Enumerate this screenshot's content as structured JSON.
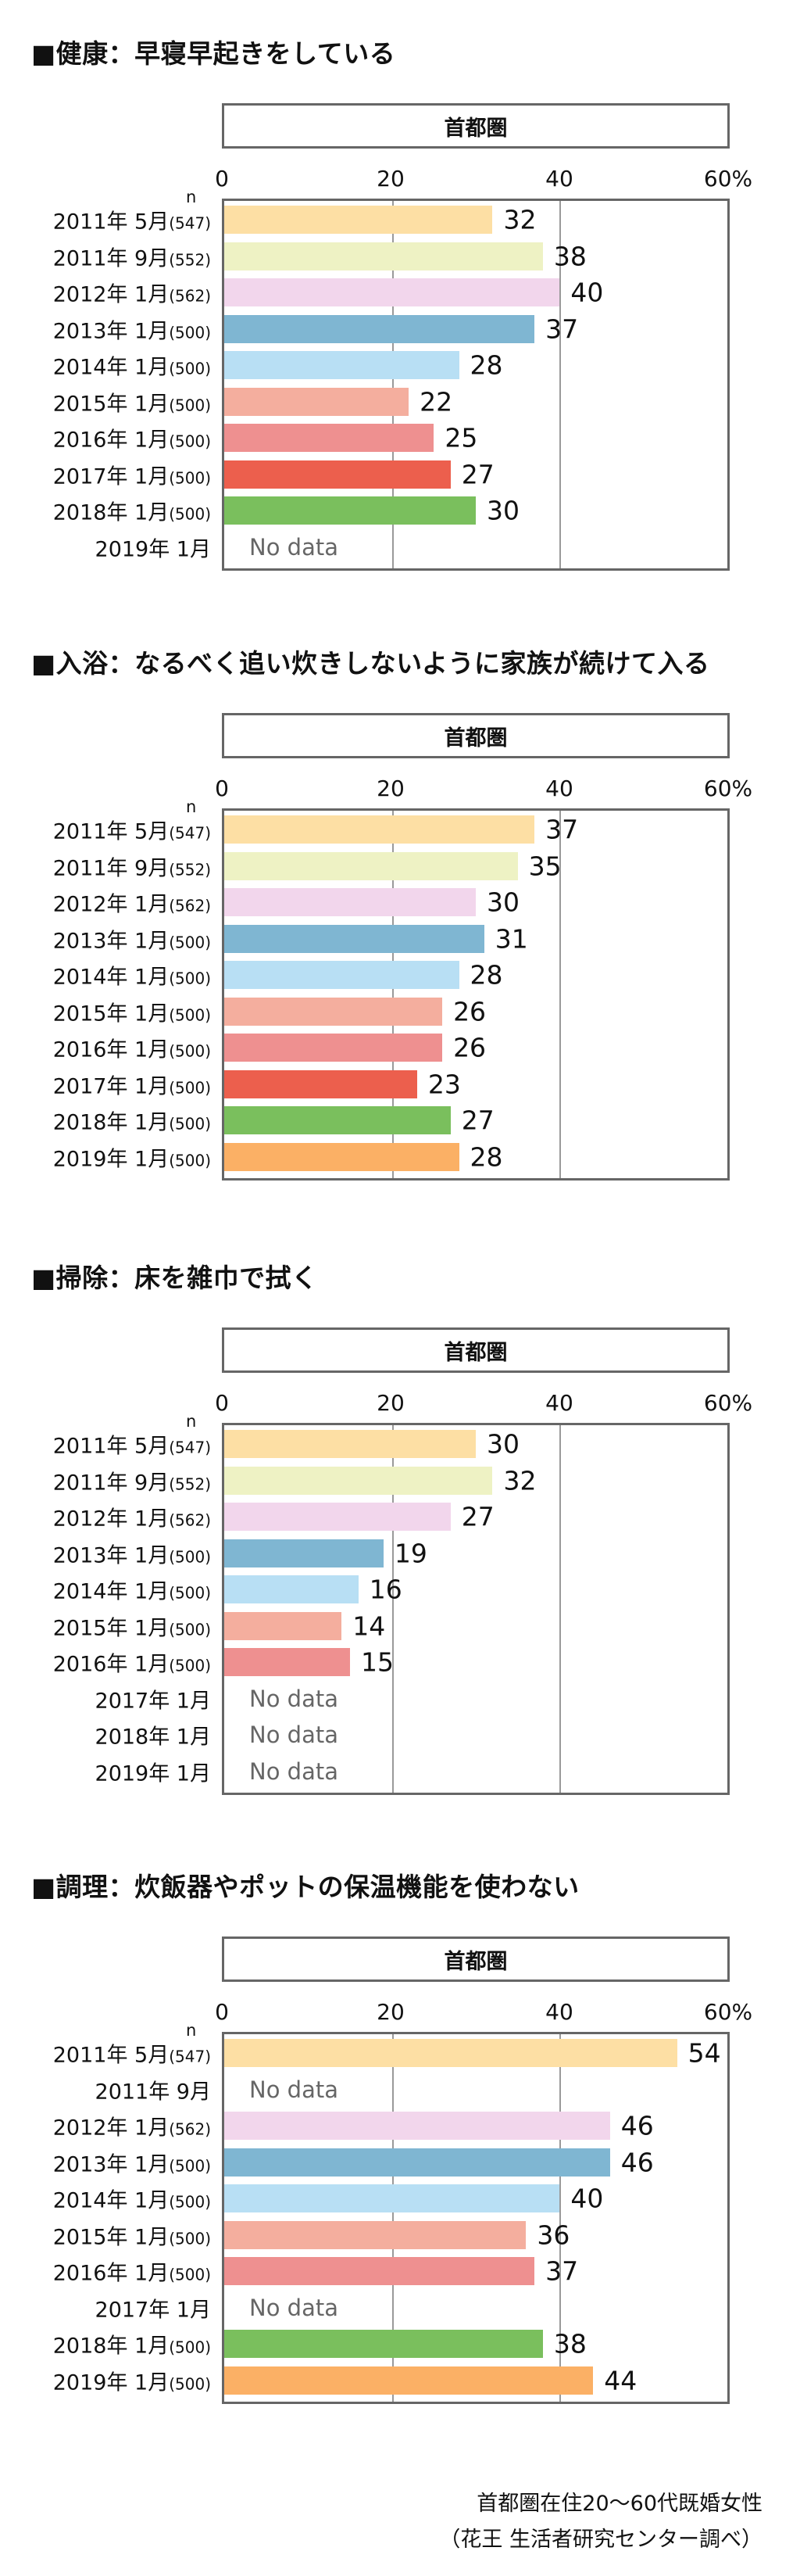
{
  "region_label": "首都圏",
  "n_label": "n",
  "x_ticks": [
    "0",
    "20",
    "40",
    "60%"
  ],
  "no_data_label": "No data",
  "series_colors": [
    "#fddfa4",
    "#eef2c4",
    "#f2d6ec",
    "#7fb6d2",
    "#b8dff4",
    "#f4ae9e",
    "#ee9090",
    "#ec5f4d",
    "#7abf5d",
    "#fbb065"
  ],
  "chart_data": [
    {
      "type": "bar",
      "title": "■健康：早寝早起きをしている",
      "xlim": [
        0,
        60
      ],
      "grid": true,
      "categories": [
        {
          "year": "2011年 5月",
          "n": "(547)"
        },
        {
          "year": "2011年 9月",
          "n": "(552)"
        },
        {
          "year": "2012年 1月",
          "n": "(562)"
        },
        {
          "year": "2013年 1月",
          "n": "(500)"
        },
        {
          "year": "2014年 1月",
          "n": "(500)"
        },
        {
          "year": "2015年 1月",
          "n": "(500)"
        },
        {
          "year": "2016年 1月",
          "n": "(500)"
        },
        {
          "year": "2017年 1月",
          "n": "(500)"
        },
        {
          "year": "2018年 1月",
          "n": "(500)"
        },
        {
          "year": "2019年 1月",
          "n": ""
        }
      ],
      "values": [
        32,
        38,
        40,
        37,
        28,
        22,
        25,
        27,
        30,
        null
      ]
    },
    {
      "type": "bar",
      "title": "■入浴：なるべく追い炊きしないように家族が続けて入る",
      "xlim": [
        0,
        60
      ],
      "grid": true,
      "categories": [
        {
          "year": "2011年 5月",
          "n": "(547)"
        },
        {
          "year": "2011年 9月",
          "n": "(552)"
        },
        {
          "year": "2012年 1月",
          "n": "(562)"
        },
        {
          "year": "2013年 1月",
          "n": "(500)"
        },
        {
          "year": "2014年 1月",
          "n": "(500)"
        },
        {
          "year": "2015年 1月",
          "n": "(500)"
        },
        {
          "year": "2016年 1月",
          "n": "(500)"
        },
        {
          "year": "2017年 1月",
          "n": "(500)"
        },
        {
          "year": "2018年 1月",
          "n": "(500)"
        },
        {
          "year": "2019年 1月",
          "n": "(500)"
        }
      ],
      "values": [
        37,
        35,
        30,
        31,
        28,
        26,
        26,
        23,
        27,
        28
      ]
    },
    {
      "type": "bar",
      "title": "■掃除：床を雑巾で拭く",
      "xlim": [
        0,
        60
      ],
      "grid": true,
      "categories": [
        {
          "year": "2011年 5月",
          "n": "(547)"
        },
        {
          "year": "2011年 9月",
          "n": "(552)"
        },
        {
          "year": "2012年 1月",
          "n": "(562)"
        },
        {
          "year": "2013年 1月",
          "n": "(500)"
        },
        {
          "year": "2014年 1月",
          "n": "(500)"
        },
        {
          "year": "2015年 1月",
          "n": "(500)"
        },
        {
          "year": "2016年 1月",
          "n": "(500)"
        },
        {
          "year": "2017年 1月",
          "n": ""
        },
        {
          "year": "2018年 1月",
          "n": ""
        },
        {
          "year": "2019年 1月",
          "n": ""
        }
      ],
      "values": [
        30,
        32,
        27,
        19,
        16,
        14,
        15,
        null,
        null,
        null
      ]
    },
    {
      "type": "bar",
      "title": "■調理：炊飯器やポットの保温機能を使わない",
      "xlim": [
        0,
        60
      ],
      "grid": true,
      "categories": [
        {
          "year": "2011年 5月",
          "n": "(547)"
        },
        {
          "year": "2011年 9月",
          "n": ""
        },
        {
          "year": "2012年 1月",
          "n": "(562)"
        },
        {
          "year": "2013年 1月",
          "n": "(500)"
        },
        {
          "year": "2014年 1月",
          "n": "(500)"
        },
        {
          "year": "2015年 1月",
          "n": "(500)"
        },
        {
          "year": "2016年 1月",
          "n": "(500)"
        },
        {
          "year": "2017年 1月",
          "n": ""
        },
        {
          "year": "2018年 1月",
          "n": "(500)"
        },
        {
          "year": "2019年 1月",
          "n": "(500)"
        }
      ],
      "values": [
        54,
        null,
        46,
        46,
        40,
        36,
        37,
        null,
        38,
        44
      ]
    }
  ],
  "footer": {
    "line1": "首都圏在住20〜60代既婚女性",
    "line2": "（花王 生活者研究センター調べ）"
  }
}
